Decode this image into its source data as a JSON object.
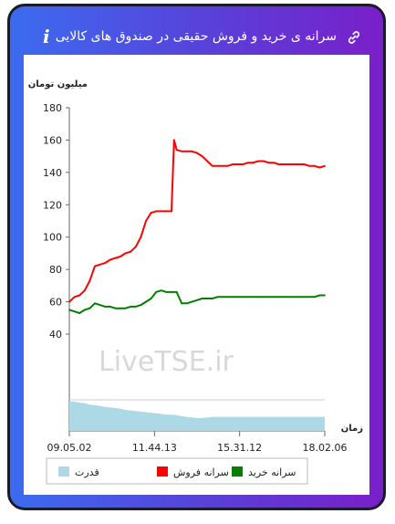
{
  "header": {
    "title": "سرانه ی خرید و فروش حقیقی در صندوق های کالایی",
    "info_glyph": "i"
  },
  "watermark": "LiveTSE.ir",
  "chart_data": {
    "type": "line",
    "ylabel": "میلیون تومان",
    "xlabel": "زمان",
    "ylim": [
      40,
      180
    ],
    "yticks": [
      40,
      60,
      80,
      100,
      120,
      140,
      160,
      180
    ],
    "xtick_labels": [
      "09.05.02",
      "11.44.13",
      "15.31.12",
      "18.02.06"
    ],
    "x": [
      0,
      2,
      4,
      6,
      8,
      10,
      12,
      14,
      16,
      18,
      20,
      22,
      24,
      26,
      28,
      30,
      32,
      34,
      36,
      38,
      40,
      41,
      42,
      44,
      46,
      48,
      50,
      52,
      54,
      56,
      58,
      60,
      62,
      64,
      66,
      68,
      70,
      72,
      74,
      76,
      78,
      80,
      82,
      84,
      86,
      88,
      90,
      92,
      94,
      96,
      98,
      100
    ],
    "series": [
      {
        "name": "سرانه فروش",
        "color": "#ff0000",
        "values": [
          60,
          63,
          64,
          67,
          73,
          82,
          83,
          84,
          86,
          87,
          88,
          90,
          91,
          94,
          100,
          110,
          115,
          116,
          116,
          116,
          116,
          160,
          154,
          153,
          153,
          153,
          152,
          150,
          147,
          144,
          144,
          144,
          144,
          145,
          145,
          145,
          146,
          146,
          147,
          147,
          146,
          146,
          145,
          145,
          145,
          145,
          145,
          145,
          144,
          144,
          143,
          144
        ]
      },
      {
        "name": "سرانه خرید",
        "color": "#008000",
        "values": [
          55,
          54,
          53,
          55,
          56,
          59,
          58,
          57,
          57,
          56,
          56,
          56,
          57,
          57,
          58,
          60,
          62,
          66,
          67,
          66,
          66,
          66,
          66,
          59,
          59,
          60,
          61,
          62,
          62,
          62,
          63,
          63,
          63,
          63,
          63,
          63,
          63,
          63,
          63,
          63,
          63,
          63,
          63,
          63,
          63,
          63,
          63,
          63,
          63,
          63,
          64,
          64
        ]
      }
    ],
    "strength": {
      "name": "قدرت",
      "color": "#add8e6",
      "values": [
        1,
        1,
        0.97,
        0.95,
        0.9,
        0.88,
        0.85,
        0.82,
        0.8,
        0.78,
        0.76,
        0.72,
        0.7,
        0.68,
        0.66,
        0.64,
        0.62,
        0.6,
        0.58,
        0.56,
        0.55,
        0.55,
        0.54,
        0.5,
        0.48,
        0.46,
        0.44,
        0.44,
        0.46,
        0.48,
        0.48,
        0.48,
        0.48,
        0.48,
        0.48,
        0.48,
        0.48,
        0.48,
        0.48,
        0.48,
        0.48,
        0.48,
        0.48,
        0.48,
        0.48,
        0.48,
        0.48,
        0.48,
        0.48,
        0.48,
        0.48,
        0.48
      ]
    },
    "legend": [
      "سرانه خرید",
      "سرانه فروش",
      "قدرت"
    ],
    "legend_placement": "bottom"
  }
}
